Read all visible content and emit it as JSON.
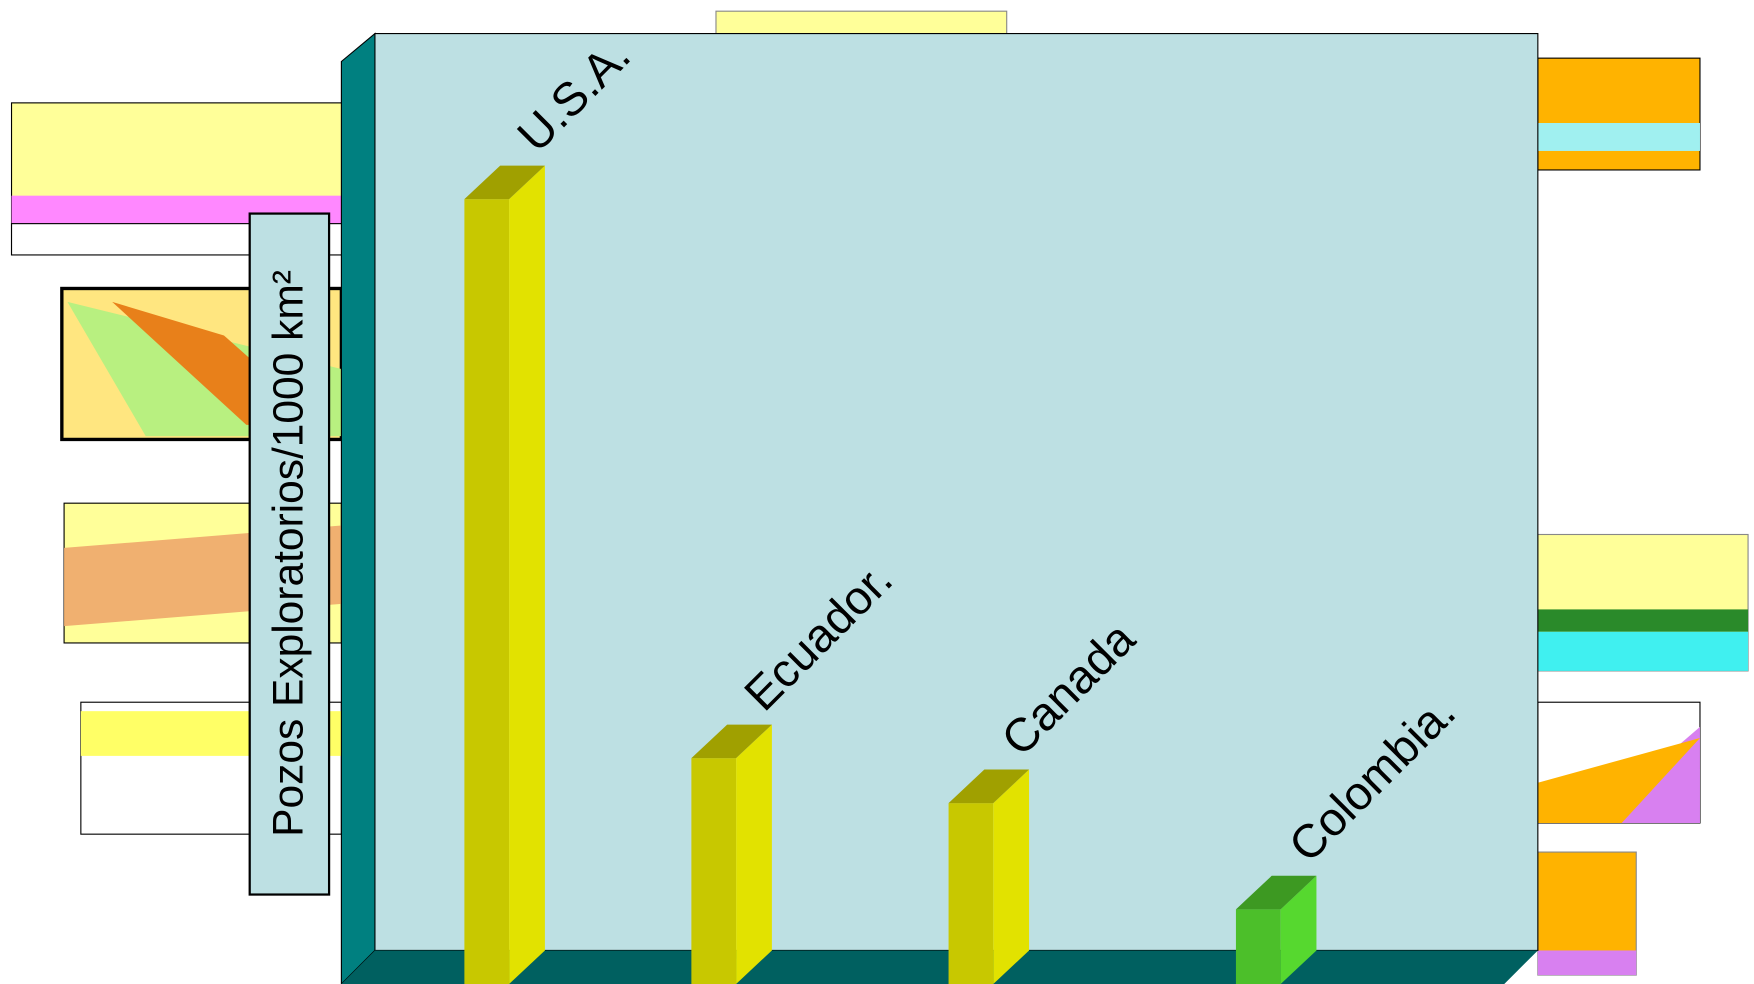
{
  "chart_data": {
    "type": "bar",
    "y_label": "Pozos Exploratorios/1000 km²",
    "categories": [
      "U.S.A.",
      "Ecuador.",
      "Canada",
      "Colombia."
    ],
    "values": [
      82,
      23.6,
      18.9,
      7.8
    ],
    "colors": [
      "#c8c800",
      "#c8c800",
      "#c8c800",
      "#4cbf2a"
    ],
    "ylim": [
      0,
      100
    ]
  }
}
